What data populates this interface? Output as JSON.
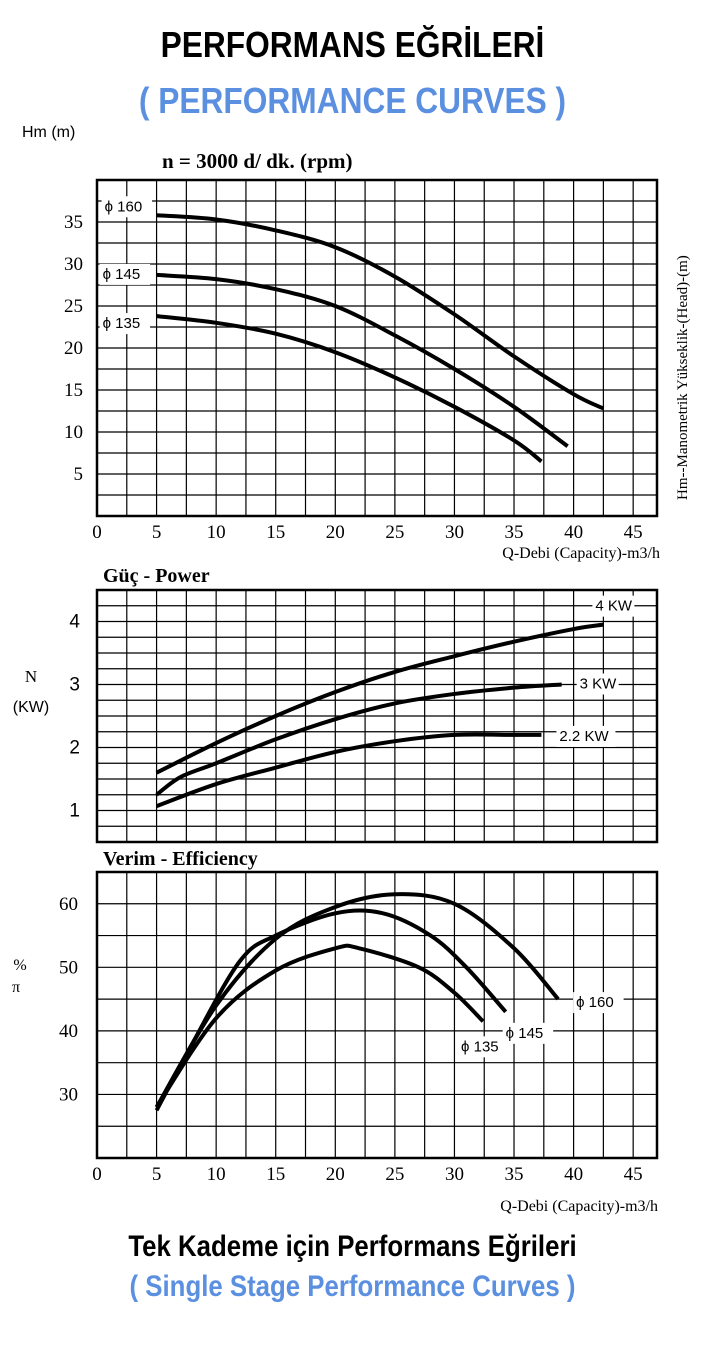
{
  "titles": {
    "main": "PERFORMANS EĞRİLERİ",
    "main_en": "( PERFORMANCE CURVES )",
    "footer": "Tek Kademe için Performans Eğrileri",
    "footer_en": "( Single Stage Performance Curves )"
  },
  "chart_data": [
    {
      "type": "line",
      "title": "n = 3000 d/ dk.  (rpm)",
      "ylabel": "Hm (m)",
      "ylabel_right": "Hm--Manometrik Yükseklik-(Head)-(m)",
      "xlabel": "Q-Debi (Capacity)-m3/h",
      "xlim": [
        0,
        47
      ],
      "ylim": [
        0,
        40
      ],
      "x_ticks": [
        "0",
        "5",
        "10",
        "15",
        "20",
        "25",
        "30",
        "35",
        "40",
        "45"
      ],
      "y_ticks": [
        "5",
        "10",
        "15",
        "20",
        "25",
        "30",
        "35"
      ],
      "grid": true,
      "series": [
        {
          "name": "ϕ 160",
          "points": [
            [
              5,
              35.8
            ],
            [
              10,
              35.3
            ],
            [
              15,
              34
            ],
            [
              20,
              32
            ],
            [
              25,
              28.5
            ],
            [
              30,
              24
            ],
            [
              35,
              19
            ],
            [
              40,
              14.5
            ],
            [
              42.5,
              12.8
            ]
          ]
        },
        {
          "name": "ϕ 145",
          "points": [
            [
              5,
              28.7
            ],
            [
              10,
              28.2
            ],
            [
              15,
              27
            ],
            [
              20,
              25
            ],
            [
              25,
              21.5
            ],
            [
              30,
              17.5
            ],
            [
              35,
              13
            ],
            [
              39.5,
              8.3
            ]
          ]
        },
        {
          "name": "ϕ 135",
          "points": [
            [
              5,
              23.8
            ],
            [
              10,
              23
            ],
            [
              15,
              21.7
            ],
            [
              20,
              19.5
            ],
            [
              25,
              16.5
            ],
            [
              30,
              13
            ],
            [
              35,
              9
            ],
            [
              37.3,
              6.5
            ]
          ]
        }
      ]
    },
    {
      "type": "line",
      "title": "Güç - Power",
      "ylabel": "N\n(KW)",
      "ylabel_n": "N",
      "ylabel_kw": "(KW)",
      "xlim": [
        0,
        47
      ],
      "ylim": [
        0.5,
        4.5
      ],
      "y_ticks": [
        "1",
        "2",
        "3",
        "4"
      ],
      "grid": true,
      "series": [
        {
          "name": "4 KW",
          "points": [
            [
              5,
              1.6
            ],
            [
              10,
              2.07
            ],
            [
              15,
              2.5
            ],
            [
              20,
              2.88
            ],
            [
              25,
              3.2
            ],
            [
              30,
              3.45
            ],
            [
              35,
              3.68
            ],
            [
              40,
              3.88
            ],
            [
              42.5,
              3.95
            ]
          ]
        },
        {
          "name": "3 KW",
          "points": [
            [
              5,
              1.25
            ],
            [
              7,
              1.53
            ],
            [
              10,
              1.75
            ],
            [
              15,
              2.13
            ],
            [
              20,
              2.45
            ],
            [
              25,
              2.7
            ],
            [
              30,
              2.85
            ],
            [
              35,
              2.95
            ],
            [
              39,
              3.0
            ]
          ]
        },
        {
          "name": "2.2 KW",
          "points": [
            [
              5,
              1.07
            ],
            [
              10,
              1.42
            ],
            [
              15,
              1.68
            ],
            [
              20,
              1.93
            ],
            [
              25,
              2.1
            ],
            [
              30,
              2.2
            ],
            [
              35,
              2.2
            ],
            [
              37.3,
              2.2
            ]
          ]
        }
      ]
    },
    {
      "type": "line",
      "title": "Verim - Efficiency",
      "ylabel": "%\nπ",
      "ylabel_pct": "%",
      "ylabel_pi": "π",
      "xlabel": "Q-Debi (Capacity)-m3/h",
      "xlim": [
        0,
        47
      ],
      "ylim": [
        20,
        65
      ],
      "x_ticks": [
        "0",
        "5",
        "10",
        "15",
        "20",
        "25",
        "30",
        "35",
        "40",
        "45"
      ],
      "y_ticks": [
        "30",
        "40",
        "50",
        "60"
      ],
      "grid": true,
      "series": [
        {
          "name": "ϕ 160",
          "points": [
            [
              5,
              28
            ],
            [
              10,
              44
            ],
            [
              15,
              54.5
            ],
            [
              20,
              59.5
            ],
            [
              25,
              61.5
            ],
            [
              30,
              60
            ],
            [
              35,
              53
            ],
            [
              38.7,
              45
            ]
          ]
        },
        {
          "name": "ϕ 145",
          "points": [
            [
              5,
              27.5
            ],
            [
              8,
              38
            ],
            [
              12,
              51
            ],
            [
              15,
              55
            ],
            [
              20,
              58.5
            ],
            [
              24,
              58.5
            ],
            [
              28,
              55
            ],
            [
              31,
              50
            ],
            [
              34.3,
              43
            ]
          ]
        },
        {
          "name": "ϕ 135",
          "points": [
            [
              5,
              28
            ],
            [
              10,
              42
            ],
            [
              15,
              49.5
            ],
            [
              20,
              53
            ],
            [
              22,
              53
            ],
            [
              27,
              50
            ],
            [
              30,
              46
            ],
            [
              32.4,
              41.5
            ]
          ]
        }
      ]
    }
  ]
}
